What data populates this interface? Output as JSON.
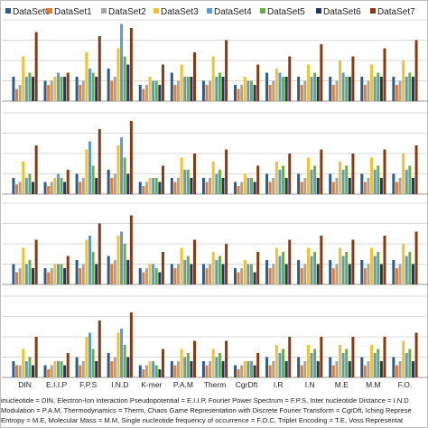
{
  "chart_data": {
    "type": "bar",
    "series": [
      {
        "name": "DataSet0",
        "color": "#2E5C8A"
      },
      {
        "name": "DataSet1",
        "color": "#E97B2E"
      },
      {
        "name": "DataSet2",
        "color": "#A5A5A5"
      },
      {
        "name": "DataSet3",
        "color": "#F2C12E"
      },
      {
        "name": "DataSet4",
        "color": "#5B9BD5"
      },
      {
        "name": "DataSet5",
        "color": "#70AD47"
      },
      {
        "name": "DataSet6",
        "color": "#1F3864"
      },
      {
        "name": "DataSet7",
        "color": "#8B3A0F"
      }
    ],
    "categories": [
      "DIN",
      "E.I.I.P",
      "F.P.S",
      "I.N.D",
      "K-mer",
      "P.A.M",
      "Therm",
      "CgrDft",
      "I.R",
      "I.N",
      "M.E",
      "M.M",
      "F.O."
    ],
    "panels": [
      {
        "values": [
          [
            0.3,
            0.15,
            0.2,
            0.55,
            0.3,
            0.35,
            0.3,
            0.85
          ],
          [
            0.25,
            0.2,
            0.25,
            0.3,
            0.35,
            0.3,
            0.3,
            0.35
          ],
          [
            0.3,
            0.2,
            0.25,
            0.6,
            0.4,
            0.35,
            0.3,
            0.8
          ],
          [
            0.4,
            0.25,
            0.3,
            0.65,
            0.95,
            0.55,
            0.45,
            0.9
          ],
          [
            0.2,
            0.15,
            0.2,
            0.3,
            0.25,
            0.25,
            0.2,
            0.45
          ],
          [
            0.35,
            0.2,
            0.25,
            0.45,
            0.3,
            0.3,
            0.3,
            0.6
          ],
          [
            0.25,
            0.2,
            0.25,
            0.55,
            0.3,
            0.35,
            0.3,
            0.75
          ],
          [
            0.2,
            0.15,
            0.2,
            0.3,
            0.25,
            0.25,
            0.2,
            0.45
          ],
          [
            0.35,
            0.2,
            0.25,
            0.4,
            0.35,
            0.3,
            0.3,
            0.55
          ],
          [
            0.3,
            0.2,
            0.25,
            0.45,
            0.3,
            0.35,
            0.3,
            0.7
          ],
          [
            0.3,
            0.2,
            0.25,
            0.5,
            0.35,
            0.3,
            0.3,
            0.55
          ],
          [
            0.3,
            0.2,
            0.25,
            0.45,
            0.3,
            0.35,
            0.3,
            0.65
          ],
          [
            0.3,
            0.2,
            0.25,
            0.5,
            0.3,
            0.35,
            0.3,
            0.75
          ]
        ]
      },
      {
        "values": [
          [
            0.2,
            0.12,
            0.15,
            0.4,
            0.2,
            0.25,
            0.15,
            0.6
          ],
          [
            0.15,
            0.1,
            0.15,
            0.2,
            0.25,
            0.2,
            0.15,
            0.3
          ],
          [
            0.25,
            0.15,
            0.2,
            0.55,
            0.65,
            0.35,
            0.2,
            0.8
          ],
          [
            0.3,
            0.2,
            0.25,
            0.6,
            0.7,
            0.45,
            0.25,
            0.9
          ],
          [
            0.15,
            0.1,
            0.15,
            0.2,
            0.2,
            0.2,
            0.15,
            0.35
          ],
          [
            0.2,
            0.15,
            0.2,
            0.45,
            0.3,
            0.3,
            0.2,
            0.5
          ],
          [
            0.2,
            0.15,
            0.2,
            0.4,
            0.25,
            0.3,
            0.2,
            0.55
          ],
          [
            0.15,
            0.1,
            0.15,
            0.25,
            0.2,
            0.2,
            0.15,
            0.35
          ],
          [
            0.25,
            0.15,
            0.2,
            0.4,
            0.3,
            0.35,
            0.2,
            0.5
          ],
          [
            0.25,
            0.15,
            0.2,
            0.45,
            0.3,
            0.35,
            0.2,
            0.55
          ],
          [
            0.25,
            0.15,
            0.2,
            0.4,
            0.3,
            0.35,
            0.2,
            0.5
          ],
          [
            0.25,
            0.15,
            0.2,
            0.45,
            0.3,
            0.35,
            0.2,
            0.55
          ],
          [
            0.25,
            0.15,
            0.2,
            0.5,
            0.3,
            0.35,
            0.2,
            0.6
          ]
        ]
      },
      {
        "values": [
          [
            0.25,
            0.15,
            0.2,
            0.45,
            0.25,
            0.3,
            0.2,
            0.55
          ],
          [
            0.2,
            0.15,
            0.2,
            0.25,
            0.25,
            0.25,
            0.2,
            0.35
          ],
          [
            0.3,
            0.2,
            0.25,
            0.55,
            0.6,
            0.4,
            0.25,
            0.75
          ],
          [
            0.35,
            0.25,
            0.3,
            0.6,
            0.65,
            0.5,
            0.3,
            0.85
          ],
          [
            0.2,
            0.15,
            0.2,
            0.25,
            0.25,
            0.2,
            0.15,
            0.4
          ],
          [
            0.25,
            0.2,
            0.25,
            0.45,
            0.3,
            0.35,
            0.25,
            0.55
          ],
          [
            0.25,
            0.2,
            0.25,
            0.4,
            0.3,
            0.35,
            0.25,
            0.5
          ],
          [
            0.2,
            0.15,
            0.2,
            0.3,
            0.25,
            0.25,
            0.15,
            0.4
          ],
          [
            0.3,
            0.2,
            0.25,
            0.45,
            0.35,
            0.4,
            0.25,
            0.55
          ],
          [
            0.3,
            0.2,
            0.25,
            0.45,
            0.35,
            0.4,
            0.25,
            0.6
          ],
          [
            0.3,
            0.2,
            0.25,
            0.45,
            0.35,
            0.4,
            0.25,
            0.55
          ],
          [
            0.3,
            0.2,
            0.25,
            0.45,
            0.35,
            0.4,
            0.25,
            0.6
          ],
          [
            0.3,
            0.2,
            0.25,
            0.5,
            0.35,
            0.4,
            0.25,
            0.65
          ]
        ]
      },
      {
        "values": [
          [
            0.2,
            0.15,
            0.15,
            0.35,
            0.2,
            0.25,
            0.15,
            0.5
          ],
          [
            0.15,
            0.1,
            0.15,
            0.2,
            0.2,
            0.2,
            0.15,
            0.3
          ],
          [
            0.25,
            0.15,
            0.2,
            0.5,
            0.55,
            0.35,
            0.2,
            0.7
          ],
          [
            0.3,
            0.2,
            0.25,
            0.55,
            0.6,
            0.4,
            0.25,
            0.8
          ],
          [
            0.15,
            0.1,
            0.15,
            0.2,
            0.2,
            0.15,
            0.1,
            0.35
          ],
          [
            0.2,
            0.15,
            0.2,
            0.35,
            0.25,
            0.3,
            0.2,
            0.45
          ],
          [
            0.2,
            0.15,
            0.2,
            0.35,
            0.25,
            0.3,
            0.2,
            0.45
          ],
          [
            0.15,
            0.1,
            0.15,
            0.2,
            0.2,
            0.2,
            0.15,
            0.3
          ],
          [
            0.25,
            0.15,
            0.2,
            0.4,
            0.3,
            0.35,
            0.2,
            0.5
          ],
          [
            0.25,
            0.15,
            0.2,
            0.4,
            0.3,
            0.35,
            0.2,
            0.5
          ],
          [
            0.25,
            0.15,
            0.2,
            0.4,
            0.3,
            0.35,
            0.2,
            0.5
          ],
          [
            0.25,
            0.15,
            0.2,
            0.4,
            0.3,
            0.35,
            0.2,
            0.5
          ],
          [
            0.25,
            0.15,
            0.2,
            0.45,
            0.3,
            0.35,
            0.2,
            0.55
          ]
        ]
      }
    ],
    "grid": true,
    "legend": "top"
  },
  "caption": {
    "line1": "inucleotide = DIN, Electron-Ion Interaction Pseudopotential = E.I.I.P, Fourier Power Spectrum = F.P.S, Inter nucleotide Distance = I.N.D",
    "line2": "Modulation = P.A.M, Thermodynamics = Therm, Chaos Game Representation with Discrete Fourier Transform = CgrDft, Iching Represe",
    "line3": "Entropy = M.E, Molecular Mass = M.M, Single nucleotide frequency of occurrence = F.O.C, Triplet Encoding = T.E, Voss Representat"
  }
}
